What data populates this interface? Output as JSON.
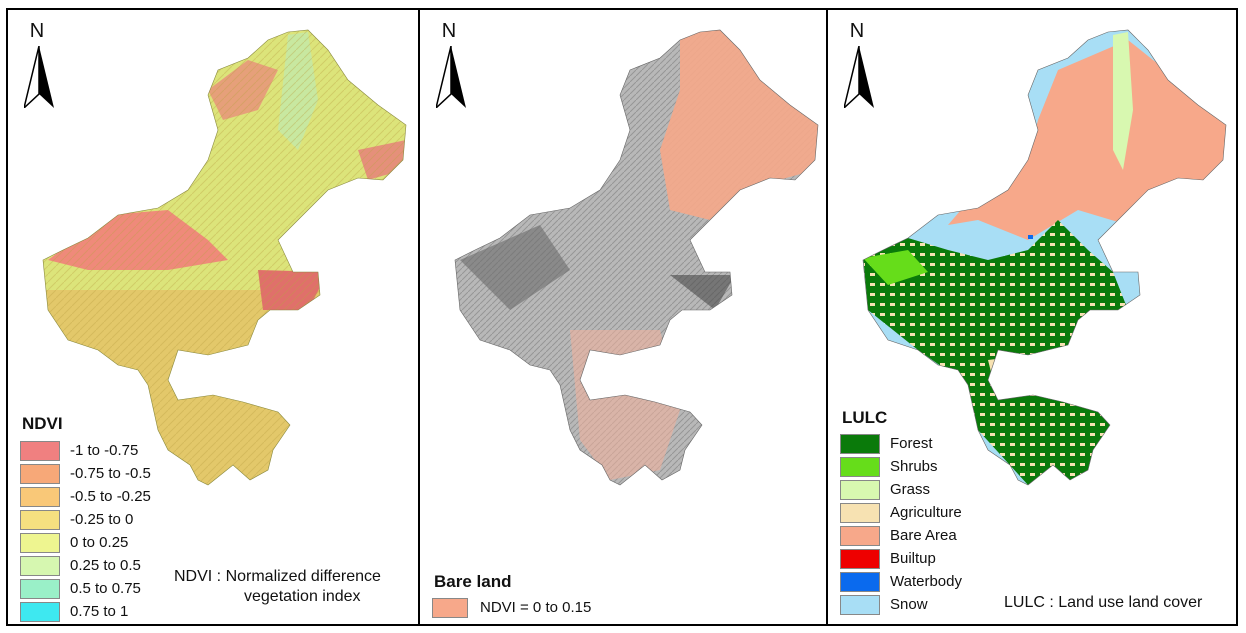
{
  "panels": {
    "ndvi": {
      "north_label": "N",
      "legend_title": "NDVI",
      "legend": [
        {
          "label": "-1 to -0.75",
          "color": "#f08080"
        },
        {
          "label": "-0.75 to -0.5",
          "color": "#f7a878"
        },
        {
          "label": "-0.5 to -0.25",
          "color": "#f9c878"
        },
        {
          "label": "-0.25 to 0",
          "color": "#f5e080"
        },
        {
          "label": "0 to 0.25",
          "color": "#eef590"
        },
        {
          "label": "0.25 to 0.5",
          "color": "#d6f7b0"
        },
        {
          "label": "0.5 to 0.75",
          "color": "#9af0c8"
        },
        {
          "label": "0.75 to 1",
          "color": "#3ee8f0"
        }
      ],
      "note_line1": "NDVI : Normalized difference",
      "note_line2": "vegetation index"
    },
    "bare": {
      "north_label": "N",
      "legend_title": "Bare land",
      "legend": [
        {
          "label": "NDVI = 0 to 0.15",
          "color": "#f7a88a"
        }
      ]
    },
    "lulc": {
      "north_label": "N",
      "legend_title": "LULC",
      "legend": [
        {
          "label": "Forest",
          "color": "#0a7a0a"
        },
        {
          "label": "Shrubs",
          "color": "#66dd1a"
        },
        {
          "label": "Grass",
          "color": "#d8f8b0"
        },
        {
          "label": "Agriculture",
          "color": "#f7e2b2"
        },
        {
          "label": "Bare Area",
          "color": "#f7a88a"
        },
        {
          "label": "Builtup",
          "color": "#ee0000"
        },
        {
          "label": "Waterbody",
          "color": "#0a6aee"
        },
        {
          "label": "Snow",
          "color": "#a8def5"
        }
      ],
      "note": "LULC : Land use land cover"
    }
  }
}
